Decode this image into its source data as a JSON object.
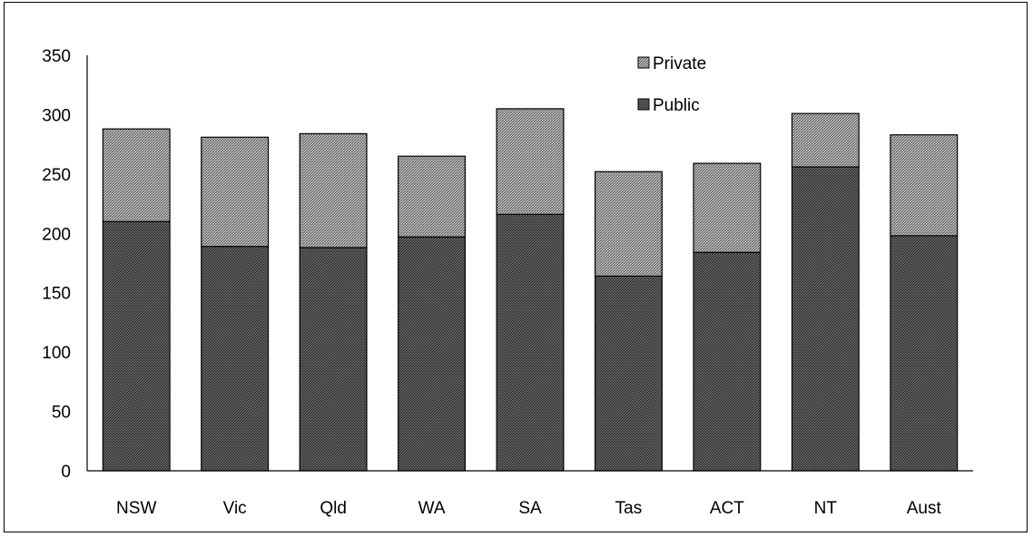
{
  "chart_data": {
    "type": "bar",
    "stacked": true,
    "categories": [
      "NSW",
      "Vic",
      "Qld",
      "WA",
      "SA",
      "Tas",
      "ACT",
      "NT",
      "Aust"
    ],
    "series": [
      {
        "name": "Public",
        "values": [
          210,
          189,
          188,
          197,
          216,
          164,
          184,
          256,
          198
        ],
        "color": "#3c3c3c"
      },
      {
        "name": "Private",
        "values": [
          78,
          92,
          96,
          68,
          89,
          88,
          75,
          45,
          85
        ],
        "color": "#8c8c8c"
      }
    ],
    "ylim": [
      0,
      350
    ],
    "yticks": [
      "0",
      "50",
      "100",
      "150",
      "200",
      "250",
      "300",
      "350"
    ],
    "title": "",
    "xlabel": "",
    "ylabel": "",
    "grid": false,
    "legend": {
      "position": "top-right",
      "entries": [
        "Private",
        "Public"
      ]
    }
  }
}
